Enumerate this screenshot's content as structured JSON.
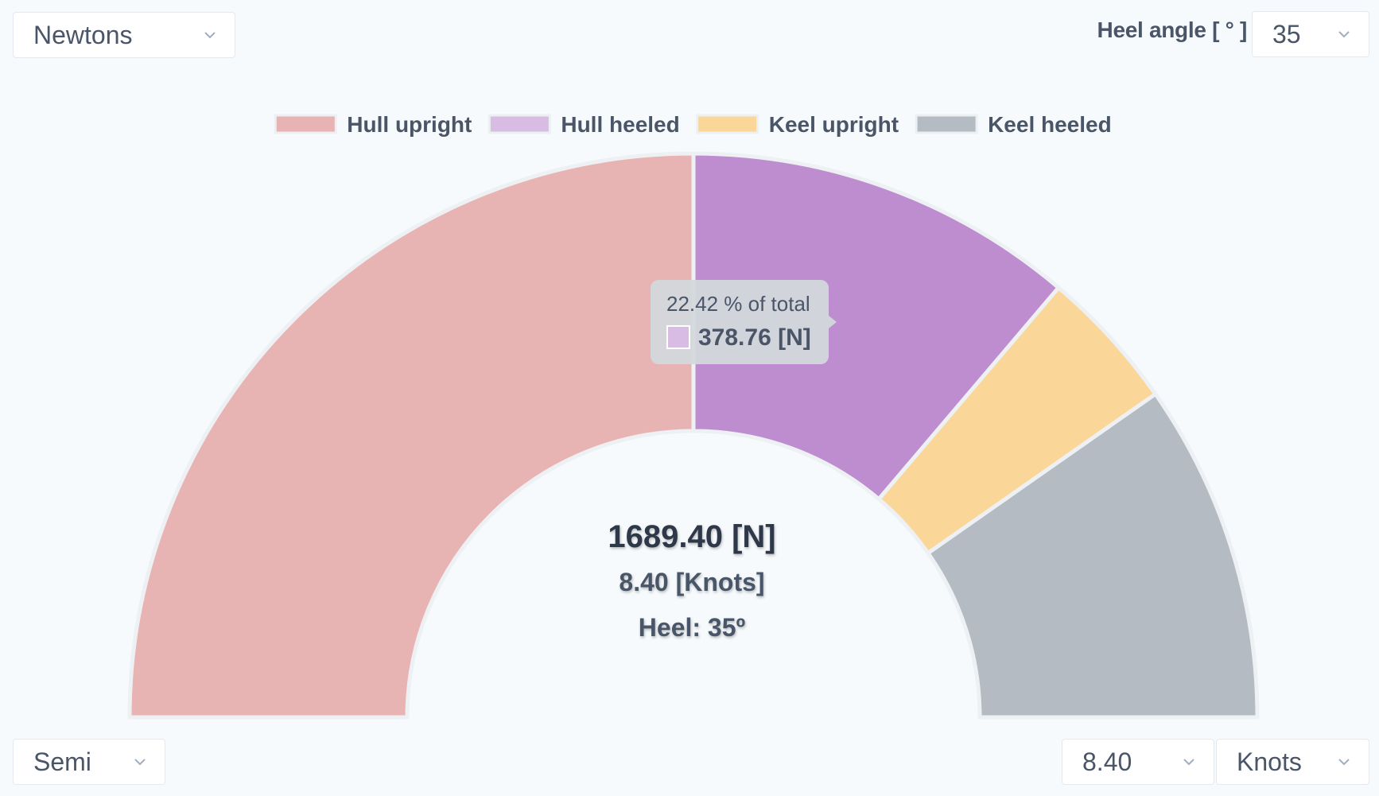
{
  "controls": {
    "unit_select": "Newtons",
    "heel_angle_label": "Heel angle [ ° ]",
    "heel_angle_select": "35",
    "hull_type_select": "Semi",
    "speed_select": "8.40",
    "speed_unit_select": "Knots"
  },
  "center": {
    "total": "1689.40 [N]",
    "speed": "8.40 [Knots]",
    "heel": "Heel: 35º"
  },
  "tooltip": {
    "percent": "22.42 % of total",
    "value": "378.76 [N]"
  },
  "icons": {
    "dropdown": "chevron-down-icon"
  },
  "chart_data": {
    "type": "pie",
    "variant": "half-doughnut",
    "unit": "N",
    "total": 1689.4,
    "legend_position": "top-center",
    "series": [
      {
        "name": "Hull upright",
        "value": 844.7,
        "color": "#e8b3b3",
        "legend_color": "#e8b3b3"
      },
      {
        "name": "Hull heeled",
        "value": 378.76,
        "color": "#bd8dd0",
        "legend_color": "#d8bce4"
      },
      {
        "name": "Keel upright",
        "value": 137.6,
        "color": "#fad699",
        "legend_color": "#fad699"
      },
      {
        "name": "Keel heeled",
        "value": 328.34,
        "color": "#b5bbc3",
        "legend_color": "#b5bbc3"
      }
    ]
  }
}
